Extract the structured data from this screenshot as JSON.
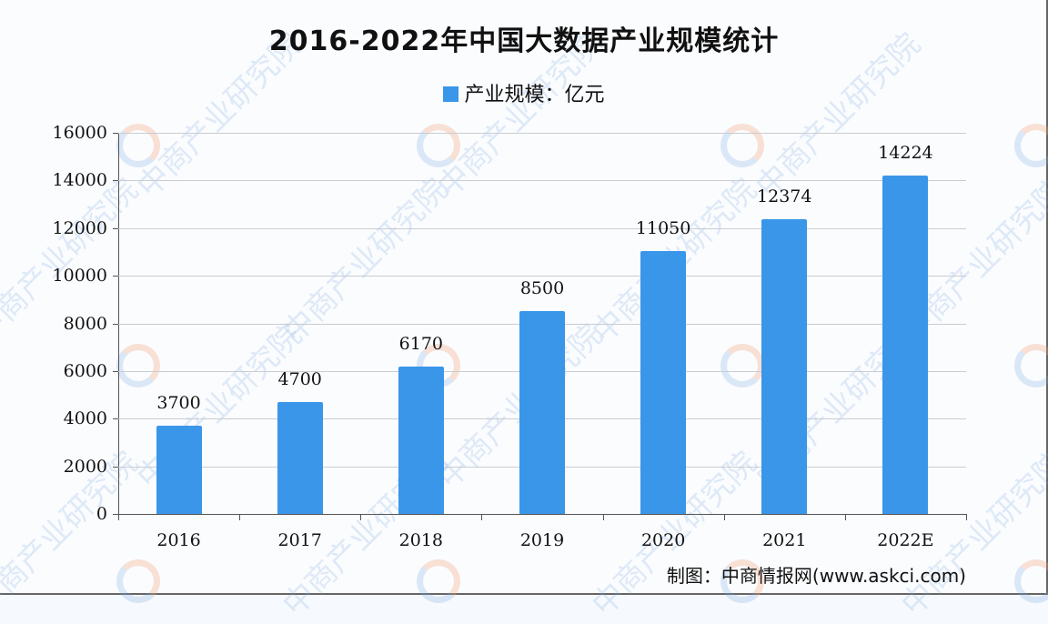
{
  "title": "2016-2022年中国大数据产业规模统计",
  "legend": {
    "label": "产业规模：亿元",
    "color": "#3a96e8"
  },
  "source": "制图：中商情报网(www.askci.com)",
  "watermark": "中商产业研究院",
  "y_ticks": [
    "16000",
    "14000",
    "12000",
    "10000",
    "8000",
    "6000",
    "4000",
    "2000",
    "0"
  ],
  "bars": [
    {
      "year": "2016",
      "value": 3700,
      "label": "3700"
    },
    {
      "year": "2017",
      "value": 4700,
      "label": "4700"
    },
    {
      "year": "2018",
      "value": 6170,
      "label": "6170"
    },
    {
      "year": "2019",
      "value": 8500,
      "label": "8500"
    },
    {
      "year": "2020",
      "value": 11050,
      "label": "11050"
    },
    {
      "year": "2021",
      "value": 12374,
      "label": "12374"
    },
    {
      "year": "2022E",
      "value": 14224,
      "label": "14224"
    }
  ],
  "chart_data": {
    "type": "bar",
    "title": "2016-2022年中国大数据产业规模统计",
    "categories": [
      "2016",
      "2017",
      "2018",
      "2019",
      "2020",
      "2021",
      "2022E"
    ],
    "series": [
      {
        "name": "产业规模：亿元",
        "values": [
          3700,
          4700,
          6170,
          8500,
          11050,
          12374,
          14224
        ]
      }
    ],
    "xlabel": "",
    "ylabel": "",
    "ylim": [
      0,
      16000
    ],
    "yticks": [
      0,
      2000,
      4000,
      6000,
      8000,
      10000,
      12000,
      14000,
      16000
    ],
    "grid": true,
    "legend_position": "top",
    "color": "#3a96e8",
    "source": "制图：中商情报网(www.askci.com)"
  }
}
